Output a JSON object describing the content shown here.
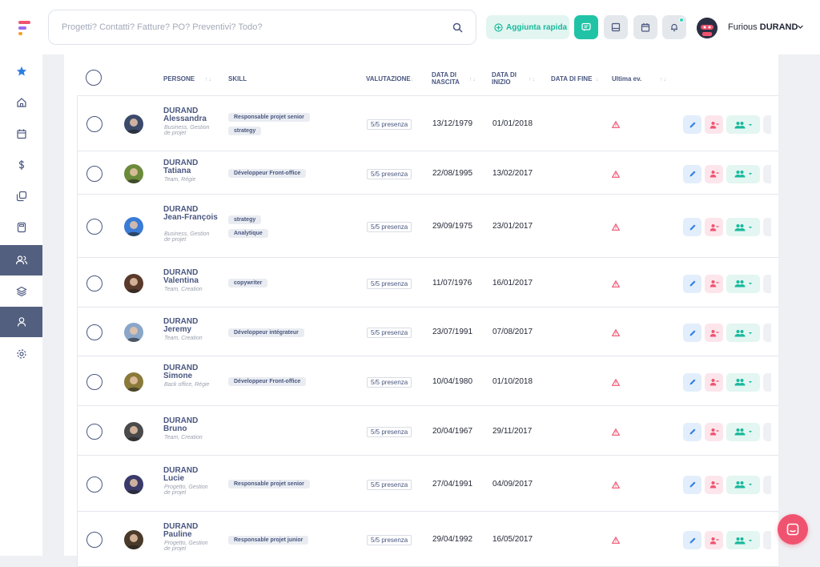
{
  "header": {
    "search_placeholder": "Progetti? Contatti? Fatture? PO? Preventivi? Todo?",
    "quick_add_label": "Aggiunta rapida",
    "user_first": "Furious",
    "user_last": "DURAND"
  },
  "colors": {
    "accent": "#21c3a7",
    "primary_text": "#4a5780",
    "danger": "#f0536f",
    "sidebar_active": "#525f7f"
  },
  "sidebar": {
    "items": [
      {
        "name": "star-icon"
      },
      {
        "name": "home-icon"
      },
      {
        "name": "calendar-icon"
      },
      {
        "name": "dollar-icon"
      },
      {
        "name": "copy-icon"
      },
      {
        "name": "calculator-icon"
      },
      {
        "name": "users-icon"
      },
      {
        "name": "layers-icon"
      },
      {
        "name": "user-icon"
      },
      {
        "name": "settings-icon"
      }
    ]
  },
  "table": {
    "columns": {
      "persone": "PERSONE",
      "skill": "SKILL",
      "valutazione": "VALUTAZIONE",
      "nascita_1": "DATA DI",
      "nascita_2": "NASCITA",
      "inizio_1": "DATA DI",
      "inizio_2": "INIZIO",
      "fine": "DATA DI FINE",
      "ultima": "Ultima ev."
    },
    "rows": [
      {
        "last": "DURAND",
        "first": "Alessandra",
        "role": "Business, Gestion de projet",
        "skills": [
          "Responsable projet senior",
          "strategy"
        ],
        "rating": "5/5 presenza",
        "birth": "13/12/1979",
        "start": "01/01/2018"
      },
      {
        "last": "DURAND",
        "first": "Tatiana",
        "role": "Team, Régie",
        "skills": [
          "Développeur Front-office"
        ],
        "rating": "5/5 presenza",
        "birth": "22/08/1995",
        "start": "13/02/2017"
      },
      {
        "last": "DURAND",
        "first": "Jean-François",
        "role": "Business, Gestion de projet",
        "skills": [
          "strategy",
          "Analytique"
        ],
        "rating": "5/5 presenza",
        "birth": "29/09/1975",
        "start": "23/01/2017"
      },
      {
        "last": "DURAND",
        "first": "Valentina",
        "role": "Team, Creation",
        "skills": [
          "copywriter"
        ],
        "rating": "5/5 presenza",
        "birth": "11/07/1976",
        "start": "16/01/2017"
      },
      {
        "last": "DURAND",
        "first": "Jeremy",
        "role": "Team, Creation",
        "skills": [
          "Développeur intégrateur"
        ],
        "rating": "5/5 presenza",
        "birth": "23/07/1991",
        "start": "07/08/2017"
      },
      {
        "last": "DURAND",
        "first": "Simone",
        "role": "Back office, Régie",
        "skills": [
          "Développeur Front-office"
        ],
        "rating": "5/5 presenza",
        "birth": "10/04/1980",
        "start": "01/10/2018"
      },
      {
        "last": "DURAND",
        "first": "Bruno",
        "role": "Team, Creation",
        "skills": [],
        "rating": "5/5 presenza",
        "birth": "20/04/1967",
        "start": "29/11/2017"
      },
      {
        "last": "DURAND",
        "first": "Lucie",
        "role": "Progetto, Gestion de projet",
        "skills": [
          "Responsable projet senior"
        ],
        "rating": "5/5 presenza",
        "birth": "27/04/1991",
        "start": "04/09/2017"
      },
      {
        "last": "DURAND",
        "first": "Pauline",
        "role": "Progetto, Gestion de projet",
        "skills": [
          "Responsable projet junior"
        ],
        "rating": "5/5 presenza",
        "birth": "29/04/1992",
        "start": "16/05/2017"
      }
    ]
  }
}
